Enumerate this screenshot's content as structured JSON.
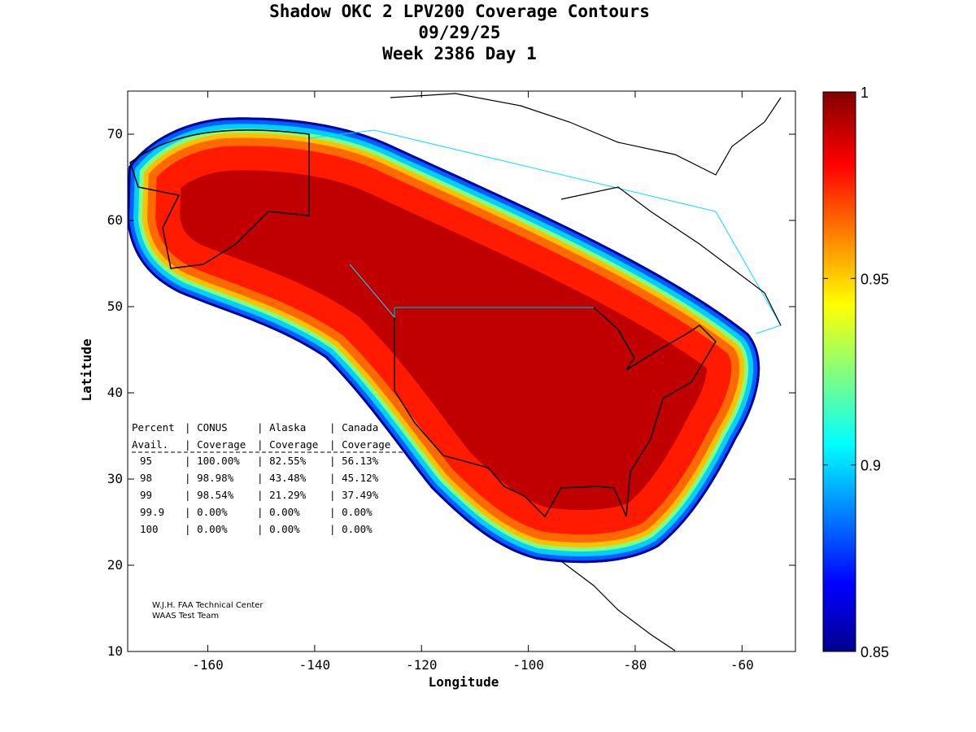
{
  "chart_data": {
    "type": "heatmap",
    "title": [
      "Shadow OKC 2 LPV200 Coverage Contours",
      "09/29/25",
      "Week 2386 Day 1"
    ],
    "xlabel": "Longitude",
    "ylabel": "Latitude",
    "xlim": [
      -175,
      -50
    ],
    "ylim": [
      10,
      75
    ],
    "xticks": [
      -160,
      -140,
      -120,
      -100,
      -80,
      -60
    ],
    "xtick_labels": [
      "-160",
      "-140",
      "-120",
      "-100",
      "-80",
      "-60"
    ],
    "yticks": [
      10,
      20,
      30,
      40,
      50,
      60,
      70
    ],
    "ytick_labels": [
      "10",
      "20",
      "30",
      "40",
      "50",
      "60",
      "70"
    ],
    "colorbar": {
      "min": 0.85,
      "max": 1,
      "ticks": [
        0.85,
        0.9,
        0.95,
        1
      ],
      "tick_labels": [
        "0.85",
        "0.9",
        "0.95",
        "1"
      ],
      "colormap": "jet"
    },
    "table": {
      "header1": [
        "Percent",
        "CONUS",
        "Alaska",
        "Canada"
      ],
      "header2": [
        "Avail.",
        "Coverage",
        "Coverage",
        "Coverage"
      ],
      "rows": [
        [
          "95",
          "100.00%",
          "82.55%",
          "56.13%"
        ],
        [
          "98",
          "98.98%",
          "43.48%",
          "45.12%"
        ],
        [
          "99",
          "98.54%",
          "21.29%",
          "37.49%"
        ],
        [
          "99.9",
          "0.00%",
          "0.00%",
          "0.00%"
        ],
        [
          "100",
          "0.00%",
          "0.00%",
          "0.00%"
        ]
      ]
    },
    "credits": [
      "W.J.H. FAA Technical Center",
      "WAAS Test Team"
    ]
  }
}
